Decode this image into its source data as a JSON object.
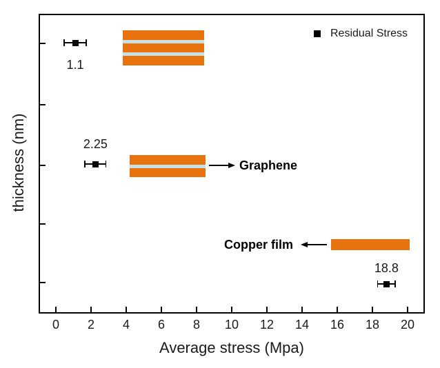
{
  "chart_data": {
    "type": "scatter",
    "title": "",
    "xlabel": "Average stress (Mpa)",
    "ylabel": "thickness (nm)",
    "xlim": [
      -1,
      21
    ],
    "x_ticks": [
      0,
      2,
      4,
      6,
      8,
      10,
      12,
      14,
      16,
      18,
      20
    ],
    "y_axis": {
      "ticks_count": 5,
      "tick_labels": []
    },
    "grid": false,
    "legend": {
      "label": "Residual Stress",
      "marker": "filled-square",
      "marker_color": "#000000",
      "position": "top-right"
    },
    "series": [
      {
        "name": "Residual Stress",
        "marker": "filled-square",
        "color": "#000000",
        "points": [
          {
            "x": 1.1,
            "xerr": 0.65,
            "label": "1.1",
            "row": "graphene-trilayer"
          },
          {
            "x": 2.25,
            "xerr": 0.63,
            "label": "2.25",
            "row": "graphene-bilayer"
          },
          {
            "x": 18.8,
            "xerr": 0.53,
            "label": "18.8",
            "row": "copper-film"
          }
        ]
      }
    ],
    "bar_groups": [
      {
        "row": "graphene-trilayer",
        "layers": 3,
        "x_start": 3.8,
        "x_end": 8.45,
        "bar_color": "#e8720d",
        "stripe_color": "#c5e1e6"
      },
      {
        "row": "graphene-bilayer",
        "layers": 2,
        "x_start": 4.2,
        "x_end": 8.5,
        "bar_color": "#e8720d",
        "stripe_color": "#c5e1e6"
      },
      {
        "row": "copper-film",
        "layers": 1,
        "x_start": 15.65,
        "x_end": 20.1,
        "bar_color": "#e8720d",
        "stripe_color": "#c5e1e6"
      }
    ],
    "annotations": [
      {
        "text": "Graphene",
        "arrow_direction": "right",
        "points_to": "graphene-bilayer-stack"
      },
      {
        "text": "Copper film",
        "arrow_direction": "left",
        "points_to": "copper-film-bar"
      }
    ]
  },
  "colors": {
    "background": "#ffffff",
    "axis": "#000000",
    "text": "#1a1a1a",
    "bar_orange": "#e8720d",
    "stripe_blue": "#c5e1e6",
    "marker_black": "#000000"
  }
}
